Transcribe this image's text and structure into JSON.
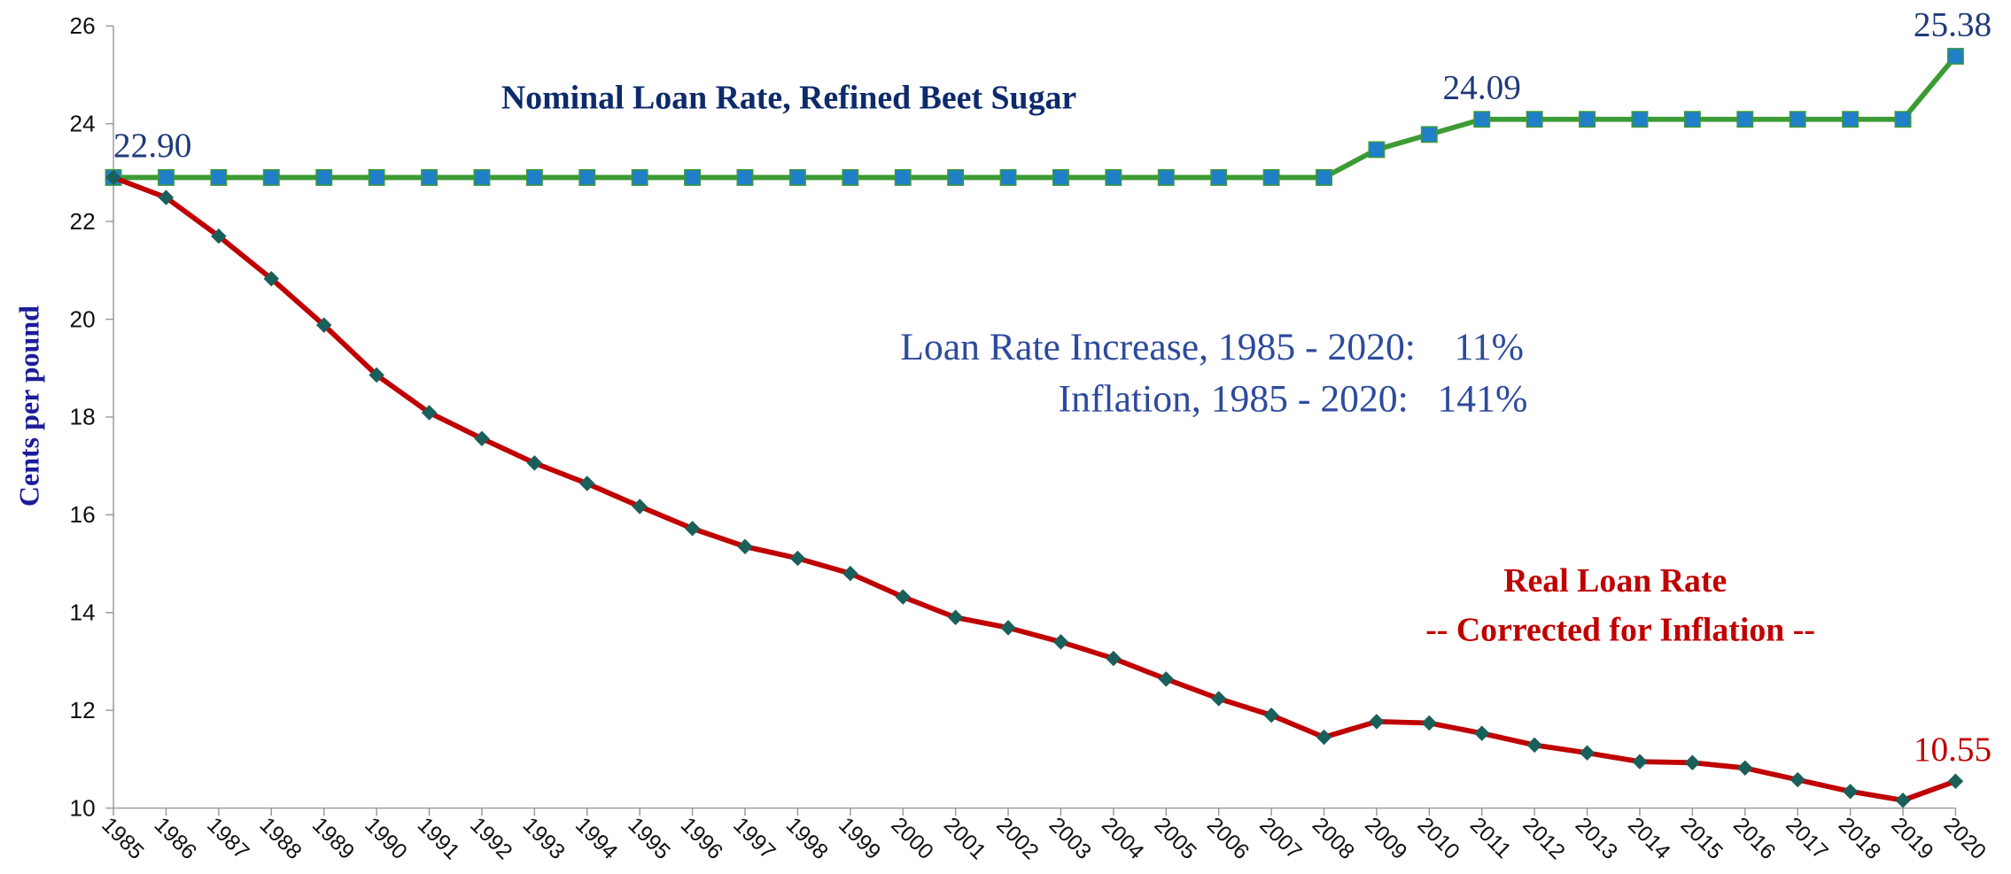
{
  "chart_data": {
    "type": "line",
    "title": "Nominal Loan Rate, Refined Beet Sugar",
    "y_label": "Cents per pound",
    "categories": [
      "1985",
      "1986",
      "1987",
      "1988",
      "1989",
      "1990",
      "1991",
      "1992",
      "1993",
      "1994",
      "1995",
      "1996",
      "1997",
      "1998",
      "1999",
      "2000",
      "2001",
      "2002",
      "2003",
      "2004",
      "2005",
      "2006",
      "2007",
      "2008",
      "2009",
      "2010",
      "2011",
      "2012",
      "2013",
      "2014",
      "2015",
      "2016",
      "2017",
      "2018",
      "2019",
      "2020"
    ],
    "series": [
      {
        "color": "#3d9b35",
        "marker_color": "#1f7fc7",
        "values": [
          22.9,
          22.9,
          22.9,
          22.9,
          22.9,
          22.9,
          22.9,
          22.9,
          22.9,
          22.9,
          22.9,
          22.9,
          22.9,
          22.9,
          22.9,
          22.9,
          22.9,
          22.9,
          22.9,
          22.9,
          22.9,
          22.9,
          22.9,
          22.9,
          23.47,
          23.78,
          24.09,
          24.09,
          24.09,
          24.09,
          24.09,
          24.09,
          24.09,
          24.09,
          24.09,
          25.38
        ],
        "value_labels": [
          "22.90",
          null,
          null,
          null,
          null,
          null,
          null,
          null,
          null,
          null,
          null,
          null,
          null,
          null,
          null,
          null,
          null,
          null,
          null,
          null,
          null,
          null,
          null,
          null,
          null,
          null,
          "24.09",
          null,
          null,
          null,
          null,
          null,
          null,
          null,
          null,
          "25.38"
        ],
        "label_color": "#1f3a7a"
      },
      {
        "color": "#c00000",
        "marker_color": "#1b5f5a",
        "values": [
          22.9,
          22.49,
          21.7,
          20.83,
          19.88,
          18.86,
          18.09,
          17.56,
          17.06,
          16.64,
          16.17,
          15.72,
          15.35,
          15.11,
          14.8,
          14.32,
          13.9,
          13.69,
          13.4,
          13.06,
          12.64,
          12.24,
          11.9,
          11.45,
          11.77,
          11.74,
          11.53,
          11.29,
          11.13,
          10.95,
          10.93,
          10.82,
          10.58,
          10.34,
          10.16,
          10.55
        ],
        "value_labels": [
          null,
          null,
          null,
          null,
          null,
          null,
          null,
          null,
          null,
          null,
          null,
          null,
          null,
          null,
          null,
          null,
          null,
          null,
          null,
          null,
          null,
          null,
          null,
          null,
          null,
          null,
          null,
          null,
          null,
          null,
          null,
          null,
          null,
          null,
          null,
          "10.55"
        ],
        "label_color": "#c00000"
      }
    ],
    "annotations": [
      {
        "text": "Loan Rate Increase, 1985 - 2020:    11%",
        "color": "#2d4a9c"
      },
      {
        "text": "Inflation, 1985 - 2020:   141%",
        "color": "#2d4a9c"
      },
      {
        "text": "Real Loan Rate",
        "color": "#c00000"
      },
      {
        "text": "-- Corrected for Inflation --",
        "color": "#c00000"
      }
    ],
    "ylim": [
      10,
      26
    ],
    "yticks": [
      10,
      12,
      14,
      16,
      18,
      20,
      22,
      24,
      26
    ],
    "grid": false
  }
}
